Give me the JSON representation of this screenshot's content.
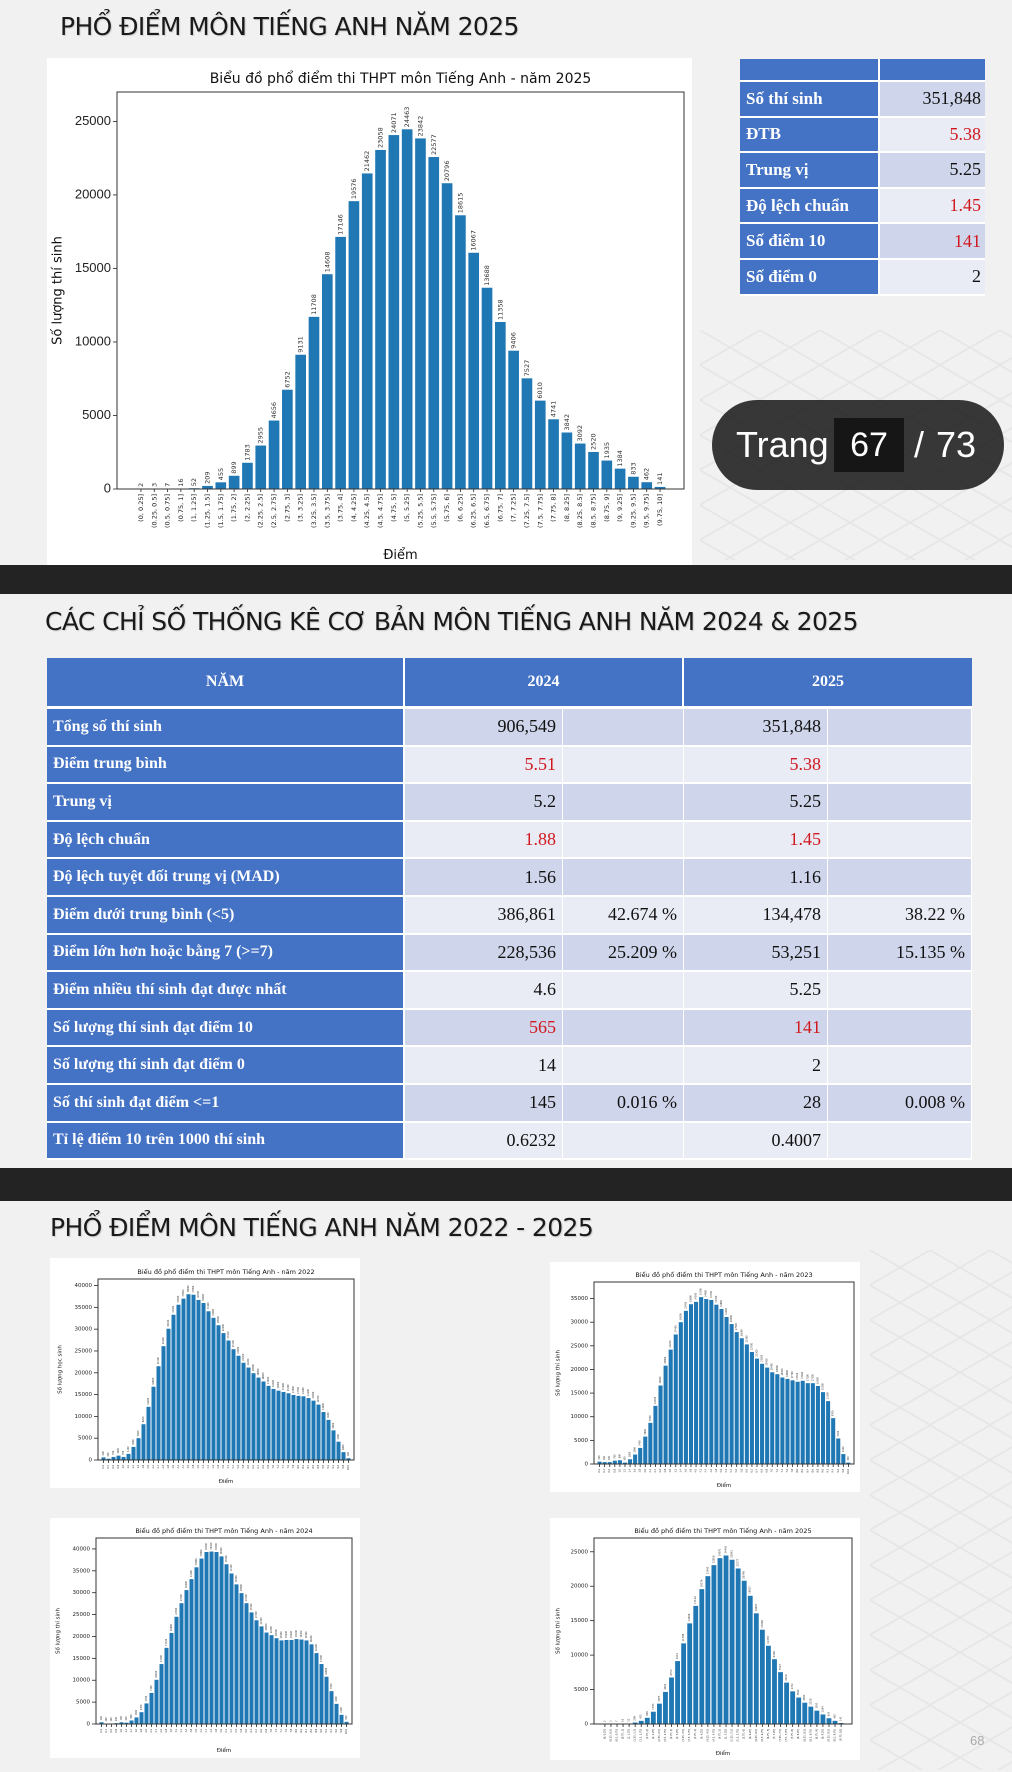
{
  "colors": {
    "table_blue": "#4472c4",
    "bar_blue": "#1f77b4",
    "highlight_red": "#d0191f"
  },
  "section1": {
    "title": "PHỔ ĐIỂM MÔN TIẾNG ANH NĂM 2025",
    "summary": [
      {
        "label": "Số thí sinh",
        "value": "351,848",
        "highlight": false
      },
      {
        "label": "ĐTB",
        "value": "5.38",
        "highlight": true
      },
      {
        "label": "Trung vị",
        "value": "5.25",
        "highlight": false
      },
      {
        "label": "Độ lệch chuẩn",
        "value": "1.45",
        "highlight": true
      },
      {
        "label": "Số điểm 10",
        "value": "141",
        "highlight": true
      },
      {
        "label": "Số điểm 0",
        "value": "2",
        "highlight": false
      }
    ]
  },
  "section2": {
    "title": "CÁC CHỈ SỐ THỐNG KÊ CƠ BẢN MÔN TIẾNG ANH NĂM 2024 & 2025",
    "header": {
      "col0": "NĂM",
      "col1": "2024",
      "col2": "2025"
    },
    "rows": [
      {
        "label": "Tổng số thí sinh",
        "v2024": "906,549",
        "p2024": "",
        "v2025": "351,848",
        "p2025": "",
        "highlight": false
      },
      {
        "label": "Điểm trung bình",
        "v2024": "5.51",
        "p2024": "",
        "v2025": "5.38",
        "p2025": "",
        "highlight": true
      },
      {
        "label": "Trung vị",
        "v2024": "5.2",
        "p2024": "",
        "v2025": "5.25",
        "p2025": "",
        "highlight": false
      },
      {
        "label": "Độ lệch chuẩn",
        "v2024": "1.88",
        "p2024": "",
        "v2025": "1.45",
        "p2025": "",
        "highlight": true
      },
      {
        "label": "Độ lệch tuyệt đối trung vị (MAD)",
        "v2024": "1.56",
        "p2024": "",
        "v2025": "1.16",
        "p2025": "",
        "highlight": false
      },
      {
        "label": "Điểm dưới trung bình (<5)",
        "v2024": "386,861",
        "p2024": "42.674 %",
        "v2025": "134,478",
        "p2025": "38.22 %",
        "highlight": false
      },
      {
        "label": "Điểm lớn hơn hoặc bằng 7 (>=7)",
        "v2024": "228,536",
        "p2024": "25.209 %",
        "v2025": "53,251",
        "p2025": "15.135 %",
        "highlight": false
      },
      {
        "label": "Điểm nhiều thí sinh đạt được nhất",
        "v2024": "4.6",
        "p2024": "",
        "v2025": "5.25",
        "p2025": "",
        "highlight": false
      },
      {
        "label": "Số lượng thí sinh đạt điểm 10",
        "v2024": "565",
        "p2024": "",
        "v2025": "141",
        "p2025": "",
        "highlight": true
      },
      {
        "label": "Số lượng thí sinh đạt điểm 0",
        "v2024": "14",
        "p2024": "",
        "v2025": "2",
        "p2025": "",
        "highlight": false
      },
      {
        "label": "Số thí sinh đạt điểm <=1",
        "v2024": "145",
        "p2024": "0.016 %",
        "v2025": "28",
        "p2025": "0.008 %",
        "highlight": false
      },
      {
        "label": "Tỉ lệ điểm 10 trên 1000 thí sinh",
        "v2024": "0.6232",
        "p2024": "",
        "v2025": "0.4007",
        "p2025": "",
        "highlight": false
      }
    ]
  },
  "section3": {
    "title": "PHỔ ĐIỂM MÔN TIẾNG ANH NĂM 2022 - 2025"
  },
  "pager": {
    "label": "Trang",
    "current": "67",
    "separator": "/",
    "total": "73"
  },
  "slide_number": "68",
  "chart_data": [
    {
      "id": "main-2025",
      "type": "bar",
      "title": "Biểu đồ phổ điểm thi THPT môn Tiếng Anh - năm 2025",
      "xlabel": "Điểm",
      "ylabel": "Số lượng thí sinh",
      "ylim": [
        0,
        27000
      ],
      "yticks": [
        0,
        5000,
        10000,
        15000,
        20000,
        25000
      ],
      "grid": false,
      "bar_labels": true,
      "categories": [
        "(0, 0.25]",
        "(0.25, 0.5]",
        "(0.5, 0.75]",
        "(0.75, 1]",
        "(1, 1.25]",
        "(1.25, 1.5]",
        "(1.5, 1.75]",
        "(1.75, 2]",
        "(2, 2.25]",
        "(2.25, 2.5]",
        "(2.5, 2.75]",
        "(2.75, 3]",
        "(3, 3.25]",
        "(3.25, 3.5]",
        "(3.5, 3.75]",
        "(3.75, 4]",
        "(4, 4.25]",
        "(4.25, 4.5]",
        "(4.5, 4.75]",
        "(4.75, 5]",
        "(5, 5.25]",
        "(5.25, 5.5]",
        "(5.5, 5.75]",
        "(5.75, 6]",
        "(6, 6.25]",
        "(6.25, 6.5]",
        "(6.5, 6.75]",
        "(6.75, 7]",
        "(7, 7.25]",
        "(7.25, 7.5]",
        "(7.5, 7.75]",
        "(7.75, 8]",
        "(8, 8.25]",
        "(8.25, 8.5]",
        "(8.5, 8.75]",
        "(8.75, 9]",
        "(9, 9.25]",
        "(9.25, 9.5]",
        "(9.5, 9.75]",
        "(9.75, 10]"
      ],
      "values": [
        2,
        3,
        7,
        16,
        52,
        209,
        455,
        899,
        1783,
        2955,
        4656,
        6752,
        9131,
        11708,
        14608,
        17146,
        19576,
        21462,
        23058,
        24071,
        24463,
        23842,
        22577,
        20796,
        18615,
        16067,
        13688,
        11358,
        9406,
        7527,
        6010,
        4741,
        3842,
        3092,
        2520,
        1935,
        1384,
        833,
        462,
        141
      ]
    },
    {
      "id": "small-2022",
      "type": "bar",
      "title": "Biểu đồ phổ điểm thi THPT môn Tiếng Anh - năm 2022",
      "xlabel": "Điểm",
      "ylabel": "Số lượng học sinh",
      "ylim": [
        0,
        41500
      ],
      "yticks": [
        0,
        5000,
        10000,
        15000,
        20000,
        25000,
        30000,
        35000,
        40000
      ],
      "grid": false,
      "bar_labels": true,
      "categories": [
        "0.2",
        "0.4",
        "0.6",
        "0.8",
        "1.0",
        "1.2",
        "1.4",
        "1.6",
        "1.8",
        "2.0",
        "2.2",
        "2.4",
        "2.6",
        "2.8",
        "3.0",
        "3.2",
        "3.4",
        "3.6",
        "3.8",
        "4.0",
        "4.2",
        "4.4",
        "4.6",
        "4.8",
        "5.0",
        "5.2",
        "5.4",
        "5.6",
        "5.8",
        "6.0",
        "6.2",
        "6.4",
        "6.6",
        "6.8",
        "7.0",
        "7.2",
        "7.4",
        "7.6",
        "7.8",
        "8.0",
        "8.2",
        "8.4",
        "8.6",
        "8.8",
        "9.0",
        "9.2",
        "9.4",
        "9.6",
        "9.8",
        "10.0"
      ],
      "values": [
        600,
        300,
        700,
        1000,
        700,
        1400,
        3000,
        5000,
        8200,
        12200,
        16800,
        21500,
        26100,
        30100,
        33300,
        35600,
        37000,
        38000,
        37900,
        36700,
        36000,
        34100,
        32600,
        30900,
        29100,
        27400,
        25400,
        23900,
        22300,
        21200,
        19900,
        18900,
        18000,
        17000,
        16300,
        15900,
        15600,
        15300,
        14900,
        14700,
        14600,
        14200,
        13600,
        12700,
        11000,
        9200,
        6800,
        4200,
        1800,
        400
      ]
    },
    {
      "id": "small-2023",
      "type": "bar",
      "title": "Biểu đồ phổ điểm thi THPT môn Tiếng Anh - năm 2023",
      "xlabel": "Điểm",
      "ylabel": "Số lượng thí sinh",
      "ylim": [
        0,
        38500
      ],
      "yticks": [
        0,
        5000,
        10000,
        15000,
        20000,
        25000,
        30000,
        35000
      ],
      "grid": false,
      "bar_labels": true,
      "categories": [
        "0.2",
        "0.4",
        "0.6",
        "0.8",
        "1.0",
        "1.2",
        "1.4",
        "1.6",
        "1.8",
        "2.0",
        "2.2",
        "2.4",
        "2.6",
        "2.8",
        "3.0",
        "3.2",
        "3.4",
        "3.6",
        "3.8",
        "4.0",
        "4.2",
        "4.4",
        "4.6",
        "4.8",
        "5.0",
        "5.2",
        "5.4",
        "5.6",
        "5.8",
        "6.0",
        "6.2",
        "6.4",
        "6.6",
        "6.8",
        "7.0",
        "7.2",
        "7.4",
        "7.6",
        "7.8",
        "8.0",
        "8.2",
        "8.4",
        "8.6",
        "8.8",
        "9.0",
        "9.2",
        "9.4",
        "9.6",
        "9.8",
        "10.0"
      ],
      "values": [
        500,
        400,
        400,
        700,
        800,
        300,
        1000,
        2000,
        3400,
        5800,
        8700,
        12300,
        16600,
        20800,
        24200,
        27400,
        30000,
        32400,
        33800,
        34300,
        35300,
        34900,
        34700,
        33700,
        32800,
        31100,
        29600,
        27900,
        26600,
        25300,
        23700,
        22300,
        21200,
        20400,
        19400,
        19000,
        18300,
        18000,
        17700,
        17400,
        17600,
        17100,
        17100,
        16500,
        15200,
        13300,
        9700,
        5400,
        2100,
        300
      ]
    },
    {
      "id": "small-2024",
      "type": "bar",
      "title": "Biểu đồ phổ điểm thi THPT môn Tiếng Anh - năm 2024",
      "xlabel": "Điểm",
      "ylabel": "Số lượng thí sinh",
      "ylim": [
        0,
        42500
      ],
      "yticks": [
        0,
        5000,
        10000,
        15000,
        20000,
        25000,
        30000,
        35000,
        40000
      ],
      "grid": false,
      "bar_labels": true,
      "categories": [
        "0.2",
        "0.4",
        "0.6",
        "0.8",
        "1.0",
        "1.2",
        "1.4",
        "1.6",
        "1.8",
        "2.0",
        "2.2",
        "2.4",
        "2.6",
        "2.8",
        "3.0",
        "3.2",
        "3.4",
        "3.6",
        "3.8",
        "4.0",
        "4.2",
        "4.4",
        "4.6",
        "4.8",
        "5.0",
        "5.2",
        "5.4",
        "5.6",
        "5.8",
        "6.0",
        "6.2",
        "6.4",
        "6.6",
        "6.8",
        "7.0",
        "7.2",
        "7.4",
        "7.6",
        "7.8",
        "8.0",
        "8.2",
        "8.4",
        "8.6",
        "8.8",
        "9.0",
        "9.2",
        "9.4",
        "9.6",
        "9.8",
        "10.0"
      ],
      "values": [
        400,
        100,
        100,
        200,
        400,
        300,
        800,
        1500,
        2700,
        4700,
        7100,
        10100,
        13700,
        17400,
        20800,
        24500,
        27600,
        30600,
        33100,
        35800,
        37800,
        39300,
        39400,
        39300,
        38300,
        36500,
        34400,
        31900,
        29900,
        27600,
        25500,
        23700,
        22300,
        20900,
        20300,
        19600,
        19100,
        19200,
        19200,
        19400,
        19300,
        19100,
        18200,
        16200,
        13700,
        10800,
        7500,
        4600,
        2100,
        500
      ]
    },
    {
      "id": "small-2025",
      "type": "bar",
      "title": "Biểu đồ phổ điểm thi THPT môn Tiếng Anh - năm 2025",
      "xlabel": "Điểm",
      "ylabel": "Số lượng thí sinh",
      "ylim": [
        0,
        27000
      ],
      "yticks": [
        0,
        5000,
        10000,
        15000,
        20000,
        25000
      ],
      "grid": false,
      "bar_labels": true,
      "categories": [
        "(0, 0.25]",
        "(0.25, 0.5]",
        "(0.5, 0.75]",
        "(0.75, 1]",
        "(1, 1.25]",
        "(1.25, 1.5]",
        "(1.5, 1.75]",
        "(1.75, 2]",
        "(2, 2.25]",
        "(2.25, 2.5]",
        "(2.5, 2.75]",
        "(2.75, 3]",
        "(3, 3.25]",
        "(3.25, 3.5]",
        "(3.5, 3.75]",
        "(3.75, 4]",
        "(4, 4.25]",
        "(4.25, 4.5]",
        "(4.5, 4.75]",
        "(4.75, 5]",
        "(5, 5.25]",
        "(5.25, 5.5]",
        "(5.5, 5.75]",
        "(5.75, 6]",
        "(6, 6.25]",
        "(6.25, 6.5]",
        "(6.5, 6.75]",
        "(6.75, 7]",
        "(7, 7.25]",
        "(7.25, 7.5]",
        "(7.5, 7.75]",
        "(7.75, 8]",
        "(8, 8.25]",
        "(8.25, 8.5]",
        "(8.5, 8.75]",
        "(8.75, 9]",
        "(9, 9.25]",
        "(9.25, 9.5]",
        "(9.5, 9.75]",
        "(9.75, 10]"
      ],
      "values": [
        2,
        3,
        7,
        16,
        52,
        209,
        455,
        899,
        1783,
        2955,
        4656,
        6752,
        9131,
        11708,
        14608,
        17146,
        19576,
        21462,
        23058,
        24071,
        24463,
        23842,
        22577,
        20796,
        18615,
        16067,
        13688,
        11358,
        9406,
        7527,
        6010,
        4741,
        3842,
        3092,
        2520,
        1935,
        1384,
        833,
        462,
        141
      ]
    }
  ]
}
